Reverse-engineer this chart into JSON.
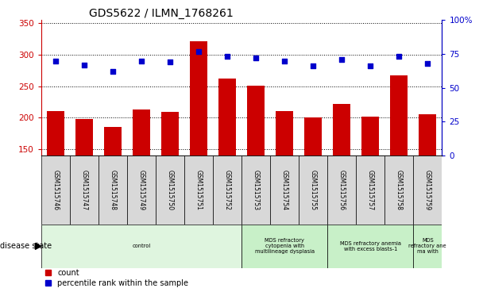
{
  "title": "GDS5622 / ILMN_1768261",
  "samples": [
    "GSM1515746",
    "GSM1515747",
    "GSM1515748",
    "GSM1515749",
    "GSM1515750",
    "GSM1515751",
    "GSM1515752",
    "GSM1515753",
    "GSM1515754",
    "GSM1515755",
    "GSM1515756",
    "GSM1515757",
    "GSM1515758",
    "GSM1515759"
  ],
  "counts": [
    211,
    198,
    185,
    213,
    209,
    322,
    262,
    251,
    211,
    201,
    222,
    202,
    267,
    205
  ],
  "percentile_ranks": [
    70,
    67,
    62,
    70,
    69,
    77,
    73,
    72,
    70,
    66,
    71,
    66,
    73,
    68
  ],
  "ylim_left": [
    140,
    355
  ],
  "ylim_right": [
    0,
    100
  ],
  "yticks_left": [
    150,
    200,
    250,
    300,
    350
  ],
  "yticks_right": [
    0,
    25,
    50,
    75,
    100
  ],
  "bar_color": "#cc0000",
  "dot_color": "#0000cc",
  "sample_bg_color": "#d8d8d8",
  "disease_groups": [
    {
      "label": "control",
      "start": 0,
      "end": 7,
      "color": "#dff5df"
    },
    {
      "label": "MDS refractory\ncytopenia with\nmultilineage dysplasia",
      "start": 7,
      "end": 10,
      "color": "#c8f0c8"
    },
    {
      "label": "MDS refractory anemia\nwith excess blasts-1",
      "start": 10,
      "end": 13,
      "color": "#c8f0c8"
    },
    {
      "label": "MDS\nrefractory ane\nma with",
      "start": 13,
      "end": 14,
      "color": "#c8f0c8"
    }
  ],
  "legend_count_label": "count",
  "legend_pct_label": "percentile rank within the sample",
  "disease_state_label": "disease state"
}
